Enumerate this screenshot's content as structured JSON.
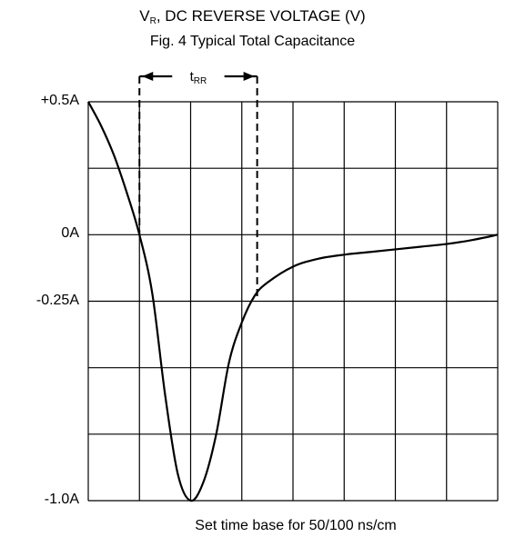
{
  "chart_data": {
    "type": "line",
    "title": "Fig. 4  Typical Total Capacitance",
    "x_axis_title": {
      "main": "V",
      "sub": "R",
      "rest": ", DC REVERSE VOLTAGE (V)"
    },
    "xlabel": "Set time base for 50/100 ns/cm",
    "ylabel": "",
    "y_tick_labels": [
      "+0.5A",
      "0A",
      "-0.25A",
      "-1.0A"
    ],
    "y_tick_values": [
      0.5,
      0,
      -0.25,
      -1.0
    ],
    "ylim": [
      -1.0,
      0.5
    ],
    "xlim": [
      0,
      8
    ],
    "grid": true,
    "annotation": {
      "text_main": "t",
      "text_sub": "RR",
      "x_start": 1,
      "x_end": 3.3
    },
    "series": [
      {
        "x": [
          0,
          0.25,
          0.5,
          0.75,
          1.0,
          1.25,
          1.5,
          1.75,
          2.0,
          2.25,
          2.5,
          2.75,
          3.0,
          3.25,
          3.5,
          4.0,
          4.5,
          5.0,
          5.5,
          6.0,
          6.5,
          7.0,
          7.5,
          8.0
        ],
        "values": [
          0.5,
          0.41,
          0.3,
          0.16,
          0.0,
          -0.22,
          -0.6,
          -0.9,
          -1.0,
          -0.93,
          -0.75,
          -0.48,
          -0.33,
          -0.23,
          -0.18,
          -0.12,
          -0.09,
          -0.075,
          -0.065,
          -0.055,
          -0.045,
          -0.035,
          -0.02,
          0.0
        ]
      }
    ]
  }
}
